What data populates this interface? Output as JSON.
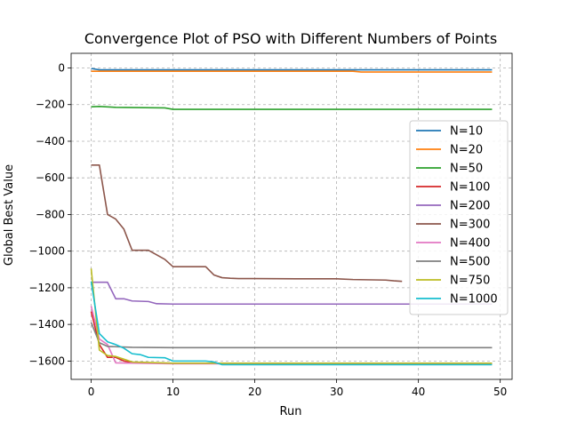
{
  "chart_data": {
    "type": "line",
    "title": "Convergence Plot of PSO with Different Numbers of Points",
    "xlabel": "Run",
    "ylabel": "Global Best Value",
    "xlim": [
      -2.45,
      51.45
    ],
    "ylim": [
      -1700,
      80
    ],
    "xticks": [
      0,
      10,
      20,
      30,
      40,
      50
    ],
    "yticks": [
      0,
      -200,
      -400,
      -600,
      -800,
      -1000,
      -1200,
      -1400,
      -1600
    ],
    "ytick_labels": [
      "0",
      "−200",
      "−400",
      "−600",
      "−800",
      "−1000",
      "−1200",
      "−1400",
      "−1600"
    ],
    "grid": true,
    "grid_style": "dashed",
    "legend_position": "right",
    "series": [
      {
        "name": "N=10",
        "color": "#1f77b4",
        "x": [
          0,
          1,
          49
        ],
        "y": [
          -3,
          -10,
          -10
        ]
      },
      {
        "name": "N=20",
        "color": "#ff7f0e",
        "x": [
          0,
          32,
          33,
          49
        ],
        "y": [
          -18,
          -18,
          -22,
          -22
        ]
      },
      {
        "name": "N=50",
        "color": "#2ca02c",
        "x": [
          0,
          1,
          3,
          9,
          10,
          49
        ],
        "y": [
          -212,
          -210,
          -215,
          -218,
          -226,
          -226
        ]
      },
      {
        "name": "N=100",
        "color": "#d62728",
        "x": [
          0,
          1,
          2,
          3,
          4,
          5,
          6,
          10,
          49
        ],
        "y": [
          -1330,
          -1510,
          -1580,
          -1580,
          -1600,
          -1608,
          -1610,
          -1612,
          -1612
        ]
      },
      {
        "name": "N=200",
        "color": "#9467bd",
        "x": [
          0,
          1,
          2,
          3,
          4,
          5,
          7,
          8,
          10,
          20,
          49
        ],
        "y": [
          -1170,
          -1170,
          -1170,
          -1260,
          -1260,
          -1272,
          -1275,
          -1287,
          -1289,
          -1289,
          -1289
        ]
      },
      {
        "name": "N=300",
        "color": "#8c564b",
        "x": [
          0,
          1,
          2,
          3,
          4,
          5,
          6,
          7,
          8,
          9,
          10,
          11,
          12,
          13,
          14,
          15,
          16,
          17,
          18,
          20,
          25,
          30,
          32,
          36,
          37,
          38
        ],
        "y": [
          -530,
          -530,
          -800,
          -825,
          -880,
          -995,
          -995,
          -995,
          -1020,
          -1045,
          -1085,
          -1085,
          -1085,
          -1085,
          -1085,
          -1130,
          -1145,
          -1148,
          -1150,
          -1150,
          -1151,
          -1151,
          -1155,
          -1158,
          -1162,
          -1165
        ]
      },
      {
        "name": "N=400",
        "color": "#e377c2",
        "x": [
          0,
          1,
          2,
          3,
          10,
          49
        ],
        "y": [
          -1300,
          -1480,
          -1510,
          -1610,
          -1615,
          -1615
        ]
      },
      {
        "name": "N=500",
        "color": "#7f7f7f",
        "x": [
          0,
          1,
          2,
          5,
          10,
          49
        ],
        "y": [
          -1390,
          -1500,
          -1520,
          -1525,
          -1527,
          -1527
        ]
      },
      {
        "name": "N=750",
        "color": "#bcbd22",
        "x": [
          0,
          1,
          2,
          3,
          4,
          5,
          10,
          49
        ],
        "y": [
          -1095,
          -1540,
          -1570,
          -1575,
          -1590,
          -1605,
          -1612,
          -1612
        ]
      },
      {
        "name": "N=1000",
        "color": "#17becf",
        "x": [
          0,
          1,
          2,
          3,
          4,
          5,
          6,
          7,
          9,
          10,
          14,
          15,
          16,
          49
        ],
        "y": [
          -1165,
          -1450,
          -1495,
          -1510,
          -1530,
          -1560,
          -1565,
          -1580,
          -1582,
          -1600,
          -1600,
          -1605,
          -1620,
          -1620
        ]
      }
    ]
  }
}
